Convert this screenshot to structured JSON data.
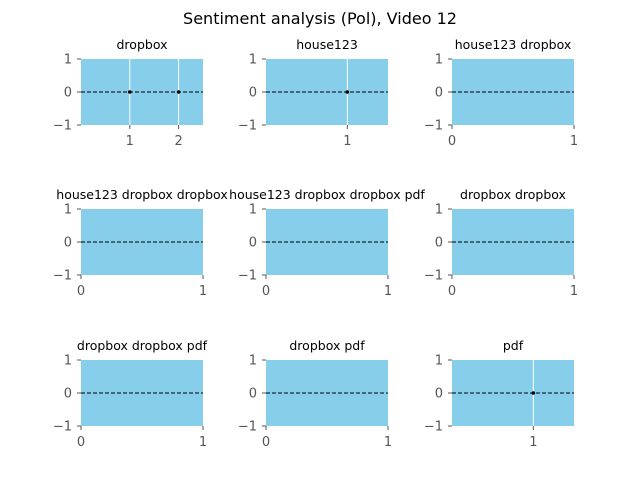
{
  "figure": {
    "title": "Sentiment analysis (Pol), Video 12"
  },
  "colors": {
    "plot_background": "#87ceeb",
    "grid": "#ffffff",
    "zero_line": "#000000",
    "tick_text": "#555555",
    "title_text": "#000000"
  },
  "chart_data": [
    {
      "type": "scatter",
      "title": "dropbox",
      "xlim": [
        0,
        2.5
      ],
      "ylim": [
        -1,
        1
      ],
      "xticks": [
        1,
        2
      ],
      "yticks": [
        -1,
        0,
        1
      ],
      "points": [
        {
          "x": 1,
          "y": 0
        },
        {
          "x": 2,
          "y": 0
        }
      ],
      "zero_line": true,
      "grid": true
    },
    {
      "type": "scatter",
      "title": "house123",
      "xlim": [
        0,
        1.5
      ],
      "ylim": [
        -1,
        1
      ],
      "xticks": [
        1
      ],
      "yticks": [
        -1,
        0,
        1
      ],
      "points": [
        {
          "x": 1,
          "y": 0
        }
      ],
      "zero_line": true,
      "grid": true
    },
    {
      "type": "scatter",
      "title": "house123 dropbox",
      "xlim": [
        0,
        1
      ],
      "ylim": [
        -1,
        1
      ],
      "xticks": [
        0,
        1
      ],
      "yticks": [
        -1,
        0,
        1
      ],
      "points": [],
      "zero_line": true,
      "grid": true
    },
    {
      "type": "scatter",
      "title": "house123 dropbox dropbox",
      "xlim": [
        0,
        1
      ],
      "ylim": [
        -1,
        1
      ],
      "xticks": [
        0,
        1
      ],
      "yticks": [
        -1,
        0,
        1
      ],
      "points": [],
      "zero_line": true,
      "grid": true
    },
    {
      "type": "scatter",
      "title": "house123 dropbox dropbox pdf",
      "xlim": [
        0,
        1
      ],
      "ylim": [
        -1,
        1
      ],
      "xticks": [
        0,
        1
      ],
      "yticks": [
        -1,
        0,
        1
      ],
      "points": [],
      "zero_line": true,
      "grid": true
    },
    {
      "type": "scatter",
      "title": "dropbox dropbox",
      "xlim": [
        0,
        1
      ],
      "ylim": [
        -1,
        1
      ],
      "xticks": [
        0,
        1
      ],
      "yticks": [
        -1,
        0,
        1
      ],
      "points": [],
      "zero_line": true,
      "grid": true
    },
    {
      "type": "scatter",
      "title": "dropbox dropbox pdf",
      "xlim": [
        0,
        1
      ],
      "ylim": [
        -1,
        1
      ],
      "xticks": [
        0,
        1
      ],
      "yticks": [
        -1,
        0,
        1
      ],
      "points": [],
      "zero_line": true,
      "grid": true
    },
    {
      "type": "scatter",
      "title": "dropbox pdf",
      "xlim": [
        0,
        1
      ],
      "ylim": [
        -1,
        1
      ],
      "xticks": [
        0,
        1
      ],
      "yticks": [
        -1,
        0,
        1
      ],
      "points": [],
      "zero_line": true,
      "grid": true
    },
    {
      "type": "scatter",
      "title": "pdf",
      "xlim": [
        0,
        1.5
      ],
      "ylim": [
        -1,
        1
      ],
      "xticks": [
        1
      ],
      "yticks": [
        -1,
        0,
        1
      ],
      "points": [
        {
          "x": 1,
          "y": 0
        }
      ],
      "zero_line": true,
      "grid": true
    }
  ]
}
